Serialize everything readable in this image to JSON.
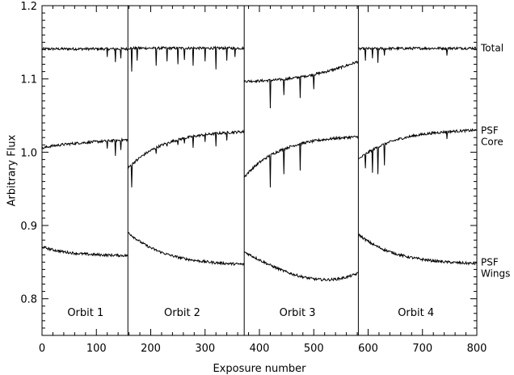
{
  "chart_data": {
    "type": "line",
    "title": "",
    "xlabel": "Exposure number",
    "ylabel": "Arbitrary Flux",
    "xlim": [
      0,
      800
    ],
    "ylim": [
      0.75,
      1.2
    ],
    "grid": false,
    "x_ticks": [
      0,
      100,
      200,
      300,
      400,
      500,
      600,
      700,
      800
    ],
    "y_ticks": [
      0.8,
      0.9,
      1.0,
      1.1,
      1.2
    ],
    "orbit_boundaries": [
      158,
      372,
      582
    ],
    "orbits": [
      {
        "label": "Orbit 1",
        "x_center": 80
      },
      {
        "label": "Orbit 2",
        "x_center": 258
      },
      {
        "label": "Orbit 3",
        "x_center": 470
      },
      {
        "label": "Orbit 4",
        "x_center": 688
      }
    ],
    "series": [
      {
        "name": "Total",
        "label_lines": [
          "Total"
        ],
        "label_y": 1.143,
        "segments": [
          {
            "x_start": 0,
            "x_end": 158,
            "y_start": 1.141,
            "y_end": 1.141,
            "dips": [
              [
                120,
                1.13
              ],
              [
                135,
                1.123
              ],
              [
                145,
                1.128
              ]
            ]
          },
          {
            "x_start": 158,
            "x_end": 372,
            "y_start": 1.142,
            "y_end": 1.142,
            "dips": [
              [
                165,
                1.11
              ],
              [
                175,
                1.125
              ],
              [
                210,
                1.118
              ],
              [
                230,
                1.124
              ],
              [
                250,
                1.12
              ],
              [
                262,
                1.126
              ],
              [
                278,
                1.118
              ],
              [
                300,
                1.124
              ],
              [
                320,
                1.113
              ],
              [
                340,
                1.125
              ],
              [
                355,
                1.13
              ]
            ]
          },
          {
            "x_start": 372,
            "x_end": 582,
            "y_start": 1.097,
            "y_end": 1.124,
            "dips": [
              [
                420,
                1.06
              ],
              [
                445,
                1.078
              ],
              [
                475,
                1.074
              ],
              [
                500,
                1.086
              ]
            ]
          },
          {
            "x_start": 582,
            "x_end": 800,
            "y_start": 1.141,
            "y_end": 1.142,
            "dips": [
              [
                595,
                1.125
              ],
              [
                608,
                1.128
              ],
              [
                618,
                1.122
              ],
              [
                630,
                1.132
              ],
              [
                745,
                1.132
              ]
            ]
          }
        ]
      },
      {
        "name": "PSF Core",
        "label_lines": [
          "PSF",
          "Core"
        ],
        "label_y": 1.023,
        "segments": [
          {
            "x_start": 0,
            "x_end": 158,
            "y_start": 1.004,
            "y_end": 1.017,
            "dips": [
              [
                120,
                1.005
              ],
              [
                135,
                0.995
              ],
              [
                145,
                1.003
              ]
            ]
          },
          {
            "x_start": 158,
            "x_end": 372,
            "y_start": 0.978,
            "y_end": 1.028,
            "dips": [
              [
                165,
                0.952
              ],
              [
                175,
                0.988
              ],
              [
                210,
                0.998
              ],
              [
                230,
                1.008
              ],
              [
                250,
                1.01
              ],
              [
                262,
                1.012
              ],
              [
                278,
                1.006
              ],
              [
                300,
                1.014
              ],
              [
                320,
                1.008
              ],
              [
                340,
                1.016
              ]
            ]
          },
          {
            "x_start": 372,
            "x_end": 582,
            "y_start": 0.966,
            "y_end": 1.021,
            "dips": [
              [
                420,
                0.952
              ],
              [
                445,
                0.97
              ],
              [
                475,
                0.975
              ]
            ]
          },
          {
            "x_start": 582,
            "x_end": 800,
            "y_start": 0.99,
            "y_end": 1.03,
            "dips": [
              [
                595,
                0.978
              ],
              [
                608,
                0.972
              ],
              [
                618,
                0.97
              ],
              [
                630,
                0.982
              ],
              [
                745,
                1.018
              ]
            ]
          }
        ]
      },
      {
        "name": "PSF Wings",
        "label_lines": [
          "PSF",
          "Wings"
        ],
        "label_y": 0.843,
        "segments": [
          {
            "x_start": 0,
            "x_end": 158,
            "y_start": 0.871,
            "y_end": 0.859,
            "dips": []
          },
          {
            "x_start": 158,
            "x_end": 372,
            "y_start": 0.891,
            "y_end": 0.847,
            "dips": []
          },
          {
            "x_start": 372,
            "x_end": 582,
            "y_start": 0.864,
            "y_end": 0.835,
            "min_y": 0.826,
            "dips": []
          },
          {
            "x_start": 582,
            "x_end": 800,
            "y_start": 0.888,
            "y_end": 0.848,
            "dips": []
          }
        ]
      }
    ]
  }
}
